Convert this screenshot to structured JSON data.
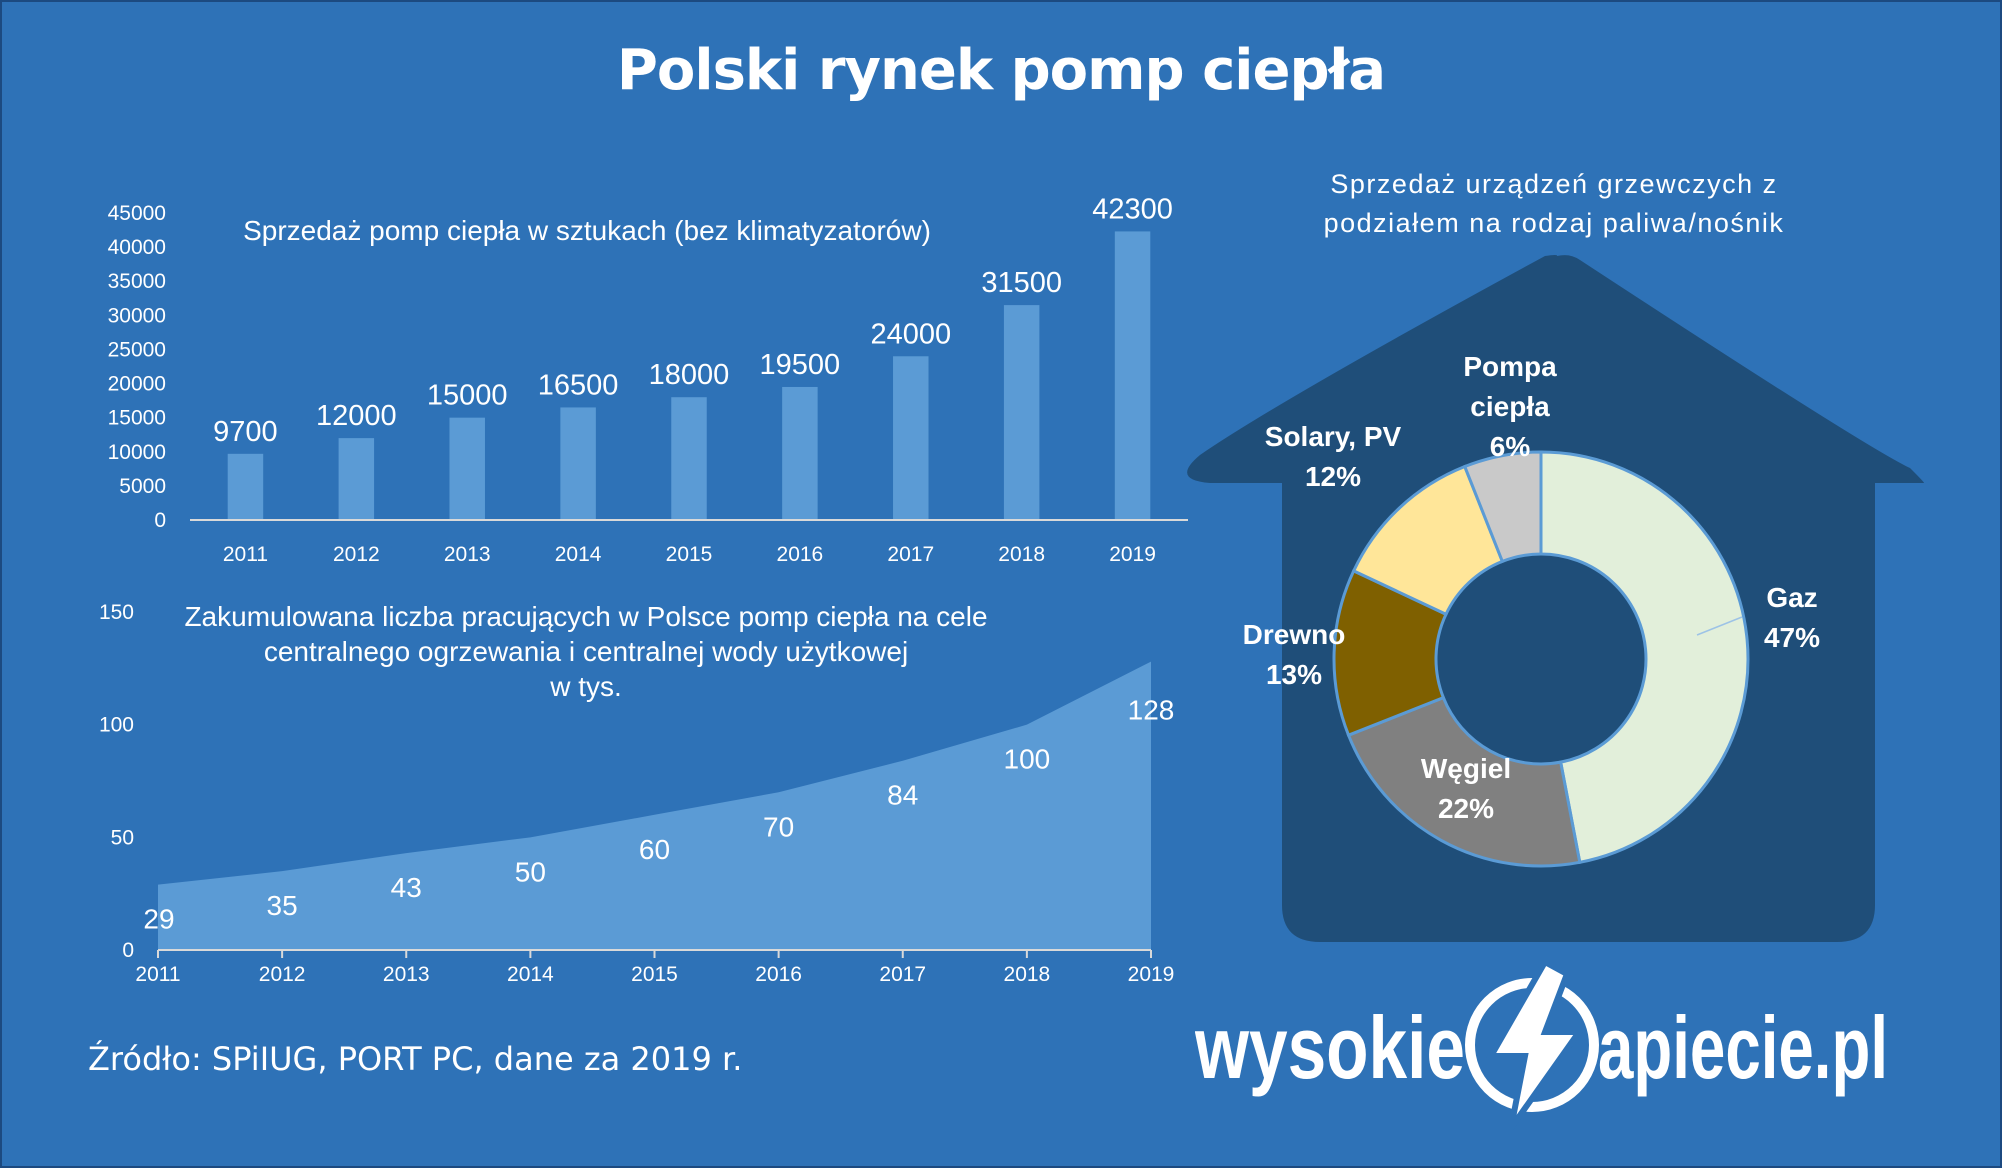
{
  "title": "Polski rynek pomp ciepła",
  "source": "Źródło: SPiIUG, PORT PC, dane za 2019 r.",
  "logo": {
    "text_left": "wysokie",
    "text_right": "apiecie.pl",
    "mark": "N"
  },
  "colors": {
    "background": "#2e72b7",
    "bar": "#5b9bd5",
    "area": "#5b9bd5",
    "house": "#1f4e79",
    "gaz": "#e2efda",
    "wegiel": "#808080",
    "drewno": "#7f6000",
    "solary": "#ffe699",
    "pompa": "#c9c9c9"
  },
  "chart_data": [
    {
      "type": "bar",
      "title": "Sprzedaż pomp ciepła w sztukach (bez klimatyzatorów)",
      "categories": [
        "2011",
        "2012",
        "2013",
        "2014",
        "2015",
        "2016",
        "2017",
        "2018",
        "2019"
      ],
      "values": [
        9700,
        12000,
        15000,
        16500,
        18000,
        19500,
        24000,
        31500,
        42300
      ],
      "ylim": [
        0,
        45000
      ],
      "yticks": [
        0,
        5000,
        10000,
        15000,
        20000,
        25000,
        30000,
        35000,
        40000,
        45000
      ],
      "grid": false
    },
    {
      "type": "area",
      "title_lines": [
        "Zakumulowana liczba pracujących w Polsce pomp ciepła na cele",
        "centralnego ogrzewania i centralnej wody użytkowej",
        "w tys."
      ],
      "categories": [
        "2011",
        "2012",
        "2013",
        "2014",
        "2015",
        "2016",
        "2017",
        "2018",
        "2019"
      ],
      "values": [
        29,
        35,
        43,
        50,
        60,
        70,
        84,
        100,
        128
      ],
      "ylim": [
        0,
        150
      ],
      "yticks": [
        0,
        50,
        100,
        150
      ],
      "grid": false
    },
    {
      "type": "pie",
      "variant": "donut",
      "title_lines": [
        "Sprzedaż urządzeń grzewczych  z",
        "podziałem na rodzaj paliwa/nośnik"
      ],
      "slices": [
        {
          "name": "Gaz",
          "value": 47,
          "label": "47%"
        },
        {
          "name": "Węgiel",
          "value": 22,
          "label": "22%"
        },
        {
          "name": "Drewno",
          "value": 13,
          "label": "13%"
        },
        {
          "name": "Solary, PV",
          "value": 12,
          "label": "12%"
        },
        {
          "name_lines": [
            "Pompa",
            "ciepła"
          ],
          "value": 6,
          "label": "6%"
        }
      ]
    }
  ]
}
